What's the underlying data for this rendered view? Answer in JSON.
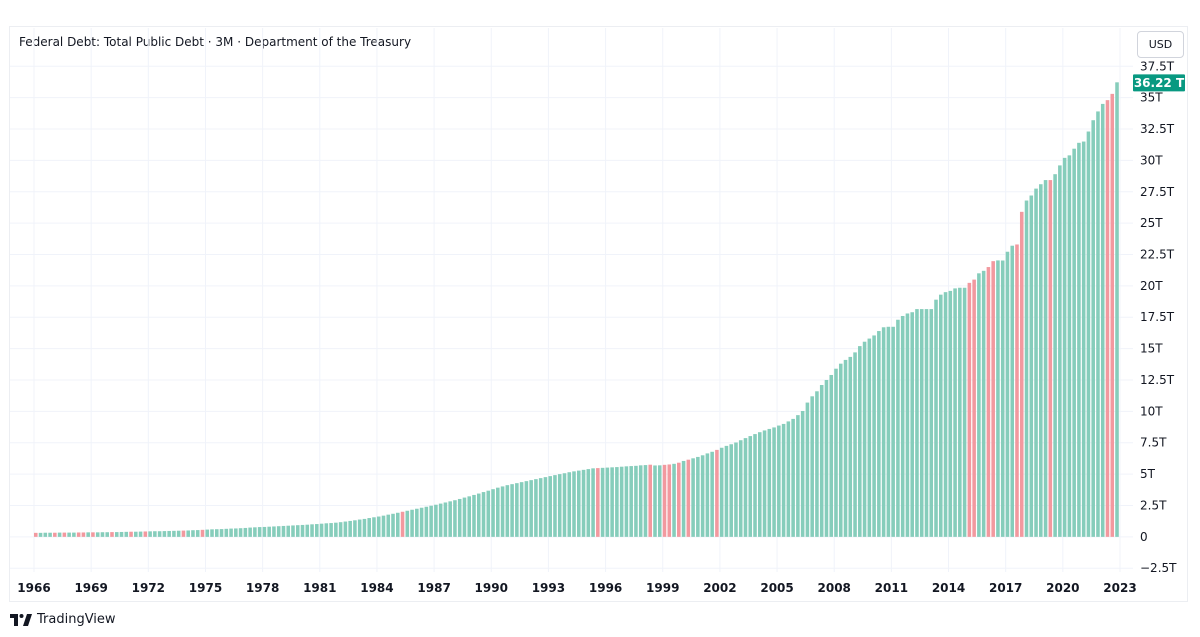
{
  "title": "Federal Debt: Total Public Debt · 3M · Department of the Treasury",
  "currency_button": "USD",
  "brand": "TradingView",
  "colors": {
    "up": "#86cdbb",
    "down": "#f2999f",
    "label_bg": "#089981",
    "grid": "#f0f3fa",
    "text": "#131722"
  },
  "chart_data": {
    "type": "bar",
    "frequency": "quarterly",
    "x_start": "1966",
    "x_ticks": [
      "1966",
      "1969",
      "1972",
      "1975",
      "1978",
      "1981",
      "1984",
      "1987",
      "1990",
      "1993",
      "1996",
      "1999",
      "2002",
      "2005",
      "2008",
      "2011",
      "2014",
      "2017",
      "2020",
      "2023"
    ],
    "y_ticks": [
      "37.5T",
      "35T",
      "32.5T",
      "30T",
      "27.5T",
      "25T",
      "22.5T",
      "20T",
      "17.5T",
      "15T",
      "12.5T",
      "10T",
      "7.5T",
      "5T",
      "2.5T",
      "0",
      "−2.5T"
    ],
    "ylim": [
      -2.8,
      37.6
    ],
    "y_unit": "T",
    "last_value_label": "36.22 T",
    "values": [
      0.32,
      0.32,
      0.33,
      0.33,
      0.33,
      0.34,
      0.34,
      0.34,
      0.34,
      0.35,
      0.35,
      0.36,
      0.36,
      0.36,
      0.37,
      0.37,
      0.38,
      0.38,
      0.39,
      0.4,
      0.41,
      0.41,
      0.42,
      0.43,
      0.44,
      0.45,
      0.45,
      0.46,
      0.47,
      0.48,
      0.49,
      0.5,
      0.51,
      0.53,
      0.54,
      0.56,
      0.58,
      0.6,
      0.61,
      0.62,
      0.64,
      0.66,
      0.67,
      0.69,
      0.71,
      0.74,
      0.76,
      0.78,
      0.79,
      0.81,
      0.83,
      0.85,
      0.87,
      0.89,
      0.91,
      0.93,
      0.95,
      0.97,
      1.0,
      1.02,
      1.05,
      1.08,
      1.1,
      1.13,
      1.17,
      1.22,
      1.27,
      1.32,
      1.38,
      1.43,
      1.5,
      1.56,
      1.62,
      1.69,
      1.77,
      1.84,
      1.92,
      2.0,
      2.08,
      2.16,
      2.24,
      2.32,
      2.4,
      2.48,
      2.56,
      2.65,
      2.74,
      2.83,
      2.92,
      3.02,
      3.13,
      3.23,
      3.34,
      3.45,
      3.57,
      3.68,
      3.8,
      3.92,
      4.02,
      4.12,
      4.2,
      4.28,
      4.36,
      4.44,
      4.52,
      4.6,
      4.68,
      4.76,
      4.84,
      4.92,
      5.0,
      5.07,
      5.15,
      5.22,
      5.28,
      5.34,
      5.4,
      5.46,
      5.48,
      5.5,
      5.52,
      5.54,
      5.56,
      5.59,
      5.62,
      5.64,
      5.66,
      5.7,
      5.72,
      5.75,
      5.69,
      5.7,
      5.74,
      5.77,
      5.82,
      5.91,
      6.05,
      6.15,
      6.26,
      6.37,
      6.5,
      6.65,
      6.78,
      6.93,
      7.1,
      7.25,
      7.38,
      7.52,
      7.7,
      7.87,
      8.03,
      8.19,
      8.34,
      8.48,
      8.6,
      8.72,
      8.87,
      9.0,
      9.2,
      9.4,
      9.7,
      10.03,
      10.7,
      11.2,
      11.6,
      12.1,
      12.5,
      12.9,
      13.4,
      13.8,
      14.1,
      14.34,
      14.7,
      15.2,
      15.55,
      15.8,
      16.05,
      16.4,
      16.7,
      16.74,
      16.74,
      17.3,
      17.6,
      17.8,
      17.9,
      18.15,
      18.15,
      18.15,
      18.15,
      18.9,
      19.3,
      19.5,
      19.6,
      19.8,
      19.85,
      19.85,
      20.24,
      20.5,
      21.0,
      21.2,
      21.5,
      21.97,
      22.03,
      22.02,
      22.72,
      23.2,
      23.3,
      25.9,
      26.8,
      27.2,
      27.75,
      28.1,
      28.43,
      28.43,
      28.9,
      29.6,
      30.2,
      30.4,
      30.93,
      31.4,
      31.5,
      32.3,
      33.2,
      33.9,
      34.5,
      34.8,
      35.3,
      36.22
    ],
    "down_indices": [
      0,
      4,
      6,
      9,
      10,
      12,
      16,
      20,
      23,
      31,
      35,
      77,
      118,
      129,
      132,
      133,
      135,
      137,
      143,
      196,
      197,
      200,
      201,
      206,
      207,
      213,
      225,
      226,
      239
    ]
  }
}
